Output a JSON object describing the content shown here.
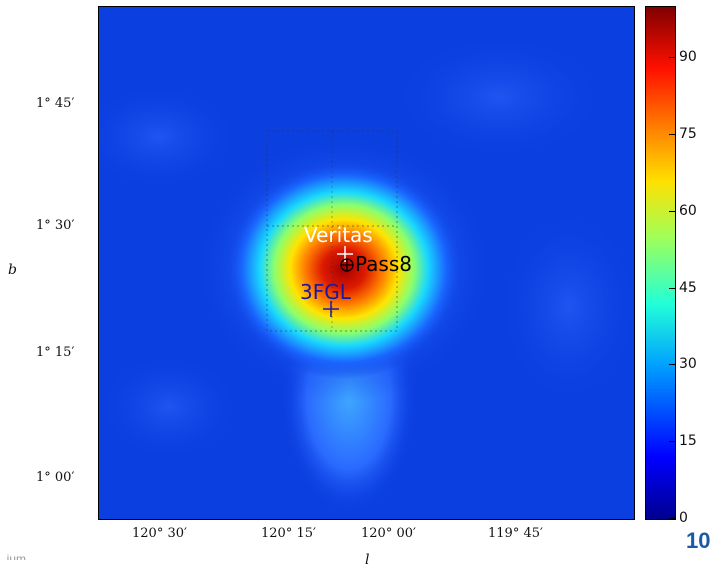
{
  "chart_data": {
    "type": "heatmap",
    "title": "",
    "xlabel": "l",
    "ylabel": "b",
    "x_ticks": [
      "120° 30′",
      "120° 15′",
      "120° 00′",
      "119° 45′"
    ],
    "y_ticks": [
      "1° 45′",
      "1° 30′",
      "1° 15′",
      "1° 00′"
    ],
    "colorbar": {
      "min": 0,
      "max": 100,
      "ticks": [
        0,
        15,
        30,
        45,
        60,
        75,
        90
      ]
    },
    "colormap": "jet",
    "peak_value": 100,
    "markers": [
      {
        "name": "Veritas",
        "l": "120° 05′",
        "b": "1° 27′",
        "symbol": "+",
        "color": "#ffffff"
      },
      {
        "name": "Pass8",
        "l": "120° 04′",
        "b": "1° 25′",
        "symbol": "⊕",
        "color": "#000000"
      },
      {
        "name": "3FGL",
        "l": "120° 07′",
        "b": "1° 20′",
        "symbol": "+",
        "color": "#1a1aa0"
      }
    ],
    "grid": "dotted box around central source"
  },
  "slide": {
    "number": "10",
    "footer_fragment": "..ium"
  }
}
